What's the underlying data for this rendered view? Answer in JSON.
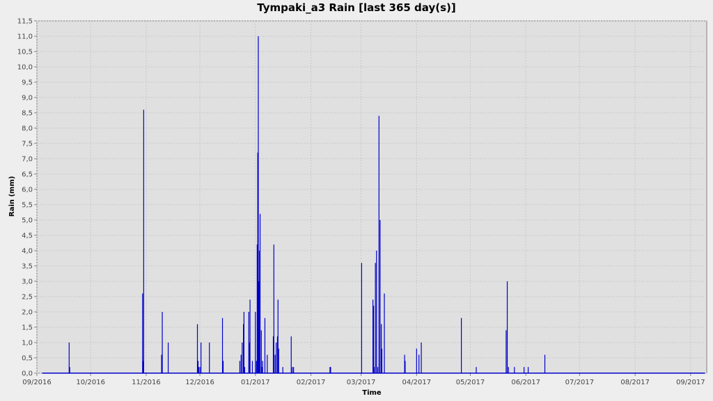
{
  "chart_data": {
    "type": "bar",
    "title": "Tympaki_a3 Rain [last 365 day(s)]",
    "xlabel": "Time",
    "ylabel": "Rain (mm)",
    "ylim": [
      0,
      11.5
    ],
    "y_ticks": [
      "0,0",
      "0,5",
      "1,0",
      "1,5",
      "2,0",
      "2,5",
      "3,0",
      "3,5",
      "4,0",
      "4,5",
      "5,0",
      "5,5",
      "6,0",
      "6,5",
      "7,0",
      "7,5",
      "8,0",
      "8,5",
      "9,0",
      "9,5",
      "10,0",
      "10,5",
      "11,0",
      "11,5"
    ],
    "x_range": [
      "2016-09-01",
      "2017-09-10"
    ],
    "x_ticks": [
      {
        "label": "09/2016",
        "date": "2016-09-01"
      },
      {
        "label": "10/2016",
        "date": "2016-10-01"
      },
      {
        "label": "11/2016",
        "date": "2016-11-01"
      },
      {
        "label": "12/2016",
        "date": "2016-12-01"
      },
      {
        "label": "01/2017",
        "date": "2017-01-01"
      },
      {
        "label": "02/2017",
        "date": "2017-02-01"
      },
      {
        "label": "03/2017",
        "date": "2017-03-01"
      },
      {
        "label": "04/2017",
        "date": "2017-04-01"
      },
      {
        "label": "05/2017",
        "date": "2017-05-01"
      },
      {
        "label": "06/2017",
        "date": "2017-06-01"
      },
      {
        "label": "07/2017",
        "date": "2017-07-01"
      },
      {
        "label": "08/2017",
        "date": "2017-08-01"
      },
      {
        "label": "09/2017",
        "date": "2017-09-01"
      }
    ],
    "baseline_range": [
      "2016-09-04",
      "2017-09-09"
    ],
    "grid": true,
    "legend": "none",
    "colors": {
      "bar": "#0000cc",
      "plot_bg": "#e0e0e0",
      "grid": "#c8c8c8"
    },
    "series": [
      {
        "x": [
          "2016-09-19",
          "2016-09-19",
          "2016-10-30",
          "2016-10-30",
          "2016-10-30",
          "2016-11-09",
          "2016-11-10",
          "2016-11-13",
          "2016-11-29",
          "2016-11-30",
          "2016-11-30",
          "2016-12-01",
          "2016-12-01",
          "2016-12-06",
          "2016-12-13",
          "2016-12-14",
          "2016-12-23",
          "2016-12-24",
          "2016-12-24",
          "2016-12-25",
          "2016-12-25",
          "2016-12-26",
          "2016-12-28",
          "2016-12-28",
          "2016-12-29",
          "2016-12-30",
          "2017-01-01",
          "2017-01-01",
          "2017-01-02",
          "2017-01-02",
          "2017-01-02",
          "2017-01-03",
          "2017-01-03",
          "2017-01-03",
          "2017-01-04",
          "2017-01-04",
          "2017-01-05",
          "2017-01-06",
          "2017-01-07",
          "2017-01-11",
          "2017-01-11",
          "2017-01-12",
          "2017-01-12",
          "2017-01-13",
          "2017-01-13",
          "2017-01-14",
          "2017-01-16",
          "2017-01-21",
          "2017-01-21",
          "2017-01-22",
          "2017-02-11",
          "2017-02-12",
          "2017-03-01",
          "2017-03-07",
          "2017-03-08",
          "2017-03-08",
          "2017-03-09",
          "2017-03-09",
          "2017-03-10",
          "2017-03-11",
          "2017-03-11",
          "2017-03-12",
          "2017-03-12",
          "2017-03-14",
          "2017-03-25",
          "2017-03-25",
          "2017-04-01",
          "2017-04-02",
          "2017-04-03",
          "2017-04-26",
          "2017-05-04",
          "2017-05-21",
          "2017-05-21",
          "2017-05-22",
          "2017-05-25",
          "2017-05-31",
          "2017-06-02",
          "2017-06-11"
        ],
        "values": [
          1.0,
          0.2,
          8.6,
          2.6,
          0.4,
          0.6,
          2.0,
          1.0,
          1.6,
          0.4,
          0.2,
          1.0,
          0.2,
          1.0,
          1.8,
          0.4,
          0.4,
          1.0,
          0.6,
          1.6,
          2.0,
          0.2,
          2.0,
          1.0,
          2.4,
          0.4,
          0.4,
          2.0,
          7.2,
          11.0,
          4.2,
          4.0,
          5.2,
          3.0,
          1.4,
          0.2,
          0.4,
          1.8,
          0.6,
          1.2,
          4.2,
          1.0,
          0.6,
          1.2,
          2.4,
          0.8,
          0.2,
          0.2,
          1.2,
          0.2,
          0.2,
          0.2,
          3.6,
          2.4,
          2.2,
          0.2,
          4.0,
          3.6,
          0.2,
          5.0,
          8.4,
          1.6,
          0.8,
          2.6,
          0.6,
          0.4,
          0.8,
          0.6,
          1.0,
          1.8,
          0.2,
          3.0,
          1.4,
          0.2,
          0.2,
          0.2,
          0.2,
          0.6
        ]
      }
    ]
  }
}
